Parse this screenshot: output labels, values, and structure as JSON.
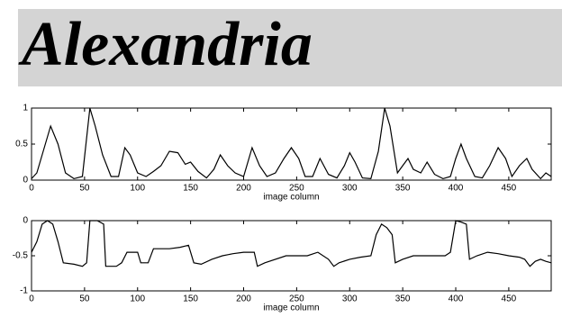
{
  "word_image": {
    "text": "Alexandria"
  },
  "chart_data": [
    {
      "type": "line",
      "color": "#000000",
      "xlabel": "image column",
      "x": [
        0,
        5,
        10,
        18,
        25,
        32,
        40,
        48,
        55,
        60,
        67,
        75,
        82,
        88,
        93,
        100,
        108,
        115,
        122,
        130,
        138,
        145,
        150,
        157,
        165,
        172,
        178,
        185,
        192,
        200,
        208,
        215,
        222,
        230,
        238,
        245,
        252,
        258,
        265,
        272,
        280,
        288,
        295,
        300,
        305,
        312,
        320,
        327,
        333,
        338,
        345,
        350,
        355,
        360,
        367,
        373,
        380,
        388,
        395,
        400,
        405,
        410,
        418,
        425,
        432,
        440,
        447,
        453,
        460,
        467,
        472,
        480,
        485,
        490
      ],
      "values": [
        0.02,
        0.1,
        0.35,
        0.75,
        0.5,
        0.1,
        0.02,
        0.05,
        1.0,
        0.75,
        0.35,
        0.05,
        0.05,
        0.45,
        0.35,
        0.1,
        0.05,
        0.12,
        0.2,
        0.4,
        0.38,
        0.22,
        0.25,
        0.12,
        0.03,
        0.15,
        0.35,
        0.2,
        0.1,
        0.05,
        0.45,
        0.2,
        0.05,
        0.1,
        0.3,
        0.45,
        0.3,
        0.05,
        0.05,
        0.3,
        0.08,
        0.03,
        0.2,
        0.38,
        0.25,
        0.03,
        0.02,
        0.4,
        1.0,
        0.75,
        0.1,
        0.2,
        0.3,
        0.15,
        0.1,
        0.25,
        0.08,
        0.02,
        0.05,
        0.3,
        0.5,
        0.3,
        0.05,
        0.03,
        0.2,
        0.45,
        0.3,
        0.05,
        0.2,
        0.3,
        0.15,
        0.02,
        0.1,
        0.05
      ],
      "xlim": [
        0,
        490
      ],
      "xticks": [
        0,
        50,
        100,
        150,
        200,
        250,
        300,
        350,
        400,
        450
      ],
      "ylim": [
        0,
        1
      ],
      "yticks": [
        0,
        0.5,
        1
      ]
    },
    {
      "type": "line",
      "color": "#000000",
      "xlabel": "image column",
      "x": [
        0,
        5,
        10,
        15,
        20,
        25,
        30,
        40,
        48,
        52,
        55,
        62,
        68,
        70,
        80,
        85,
        90,
        100,
        103,
        110,
        115,
        130,
        140,
        148,
        153,
        160,
        170,
        180,
        190,
        200,
        210,
        213,
        220,
        240,
        260,
        270,
        280,
        285,
        290,
        300,
        310,
        320,
        325,
        330,
        335,
        340,
        343,
        350,
        360,
        380,
        390,
        395,
        400,
        405,
        410,
        413,
        420,
        430,
        440,
        450,
        460,
        465,
        470,
        475,
        480,
        485,
        490
      ],
      "values": [
        -0.45,
        -0.3,
        -0.05,
        0,
        -0.05,
        -0.3,
        -0.6,
        -0.62,
        -0.65,
        -0.6,
        0,
        0,
        -0.05,
        -0.65,
        -0.65,
        -0.6,
        -0.45,
        -0.45,
        -0.6,
        -0.6,
        -0.4,
        -0.4,
        -0.38,
        -0.35,
        -0.6,
        -0.62,
        -0.55,
        -0.5,
        -0.47,
        -0.45,
        -0.45,
        -0.65,
        -0.6,
        -0.5,
        -0.5,
        -0.45,
        -0.55,
        -0.65,
        -0.6,
        -0.55,
        -0.52,
        -0.5,
        -0.2,
        -0.05,
        -0.1,
        -0.2,
        -0.6,
        -0.55,
        -0.5,
        -0.5,
        -0.5,
        -0.45,
        0,
        -0.02,
        -0.05,
        -0.55,
        -0.5,
        -0.45,
        -0.47,
        -0.5,
        -0.52,
        -0.55,
        -0.65,
        -0.58,
        -0.55,
        -0.58,
        -0.6
      ],
      "xlim": [
        0,
        490
      ],
      "xticks": [
        0,
        50,
        100,
        150,
        200,
        250,
        300,
        350,
        400,
        450
      ],
      "ylim": [
        -1,
        0
      ],
      "yticks": [
        -1,
        -0.5,
        0
      ]
    }
  ]
}
